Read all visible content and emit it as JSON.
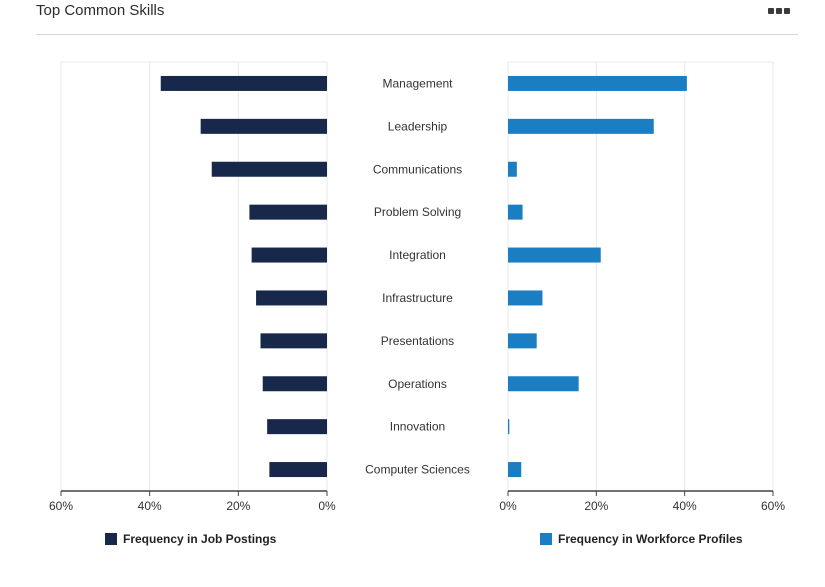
{
  "header": {
    "title": "Top Common Skills",
    "menu_icon": "more-options-icon"
  },
  "colors": {
    "job_postings": "#17284a",
    "workforce_profiles": "#1b7ec2",
    "grid": "#e8e8e8",
    "axis": "#444444"
  },
  "chart_data": {
    "type": "bar",
    "orientation": "horizontal",
    "layout": "butterfly",
    "categories": [
      "Management",
      "Leadership",
      "Communications",
      "Problem Solving",
      "Integration",
      "Infrastructure",
      "Presentations",
      "Operations",
      "Innovation",
      "Computer Sciences"
    ],
    "series": [
      {
        "name": "Frequency in Job Postings",
        "values": [
          37.5,
          28.5,
          26.0,
          17.5,
          17.0,
          16.0,
          15.0,
          14.5,
          13.5,
          13.0
        ]
      },
      {
        "name": "Frequency in Workforce Profiles",
        "values": [
          40.5,
          33.0,
          2.0,
          3.3,
          21.0,
          7.8,
          6.5,
          16.0,
          0.3,
          3.0
        ]
      }
    ],
    "left_axis": {
      "ticks": [
        "60%",
        "40%",
        "20%",
        "0%"
      ],
      "tick_values": [
        60,
        40,
        20,
        0
      ],
      "range": [
        0,
        60
      ],
      "reversed": true
    },
    "right_axis": {
      "ticks": [
        "0%",
        "20%",
        "40%",
        "60%"
      ],
      "tick_values": [
        0,
        20,
        40,
        60
      ],
      "range": [
        0,
        60
      ]
    },
    "grid": true,
    "legend_placement": "bottom"
  }
}
